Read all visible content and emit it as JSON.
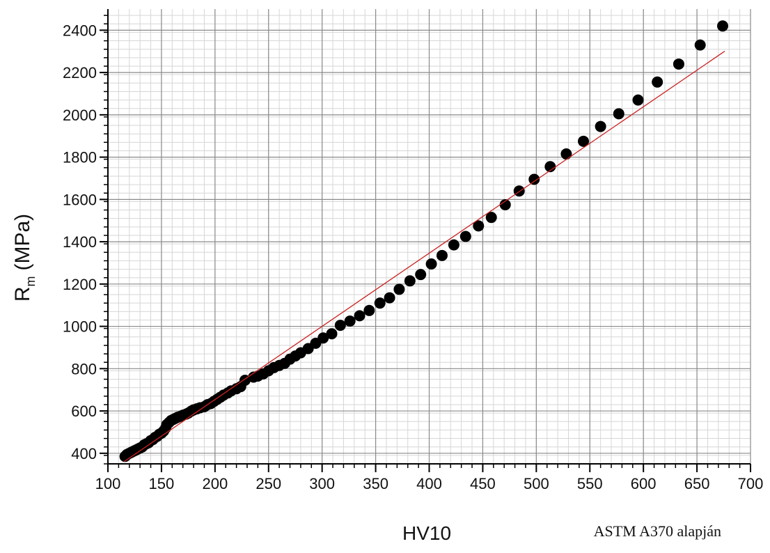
{
  "chart_data": {
    "type": "scatter",
    "xlabel": "HV10",
    "ylabel": "R",
    "ylabel_sub": "m",
    "ylabel_unit": "(MPa)",
    "note": "ASTM A370 alapján",
    "xlim": [
      100,
      700
    ],
    "xticks": [
      100,
      150,
      200,
      250,
      300,
      350,
      400,
      450,
      500,
      550,
      600,
      650,
      700
    ],
    "ylim": [
      350,
      2500
    ],
    "yticks": [
      400,
      600,
      800,
      1000,
      1200,
      1400,
      1600,
      1800,
      2000,
      2200,
      2400
    ],
    "grid": true,
    "minor_grid_x": 10,
    "minor_grid_y": 40,
    "series": [
      {
        "kind": "points",
        "color": "#000000",
        "x": [
          116,
          117,
          118,
          120,
          122,
          124,
          126,
          128,
          130,
          132,
          134,
          136,
          138,
          140,
          142,
          144,
          146,
          148,
          150,
          152,
          154,
          155,
          157,
          159,
          161,
          163,
          165,
          168,
          170,
          173,
          175,
          178,
          180,
          183,
          186,
          190,
          193,
          196,
          199,
          202,
          205,
          208,
          212,
          215,
          220,
          224,
          228,
          236,
          240,
          245,
          250,
          255,
          260,
          265,
          270,
          275,
          280,
          287,
          294,
          301,
          309,
          317,
          326,
          335,
          344,
          354,
          363,
          372,
          382,
          392,
          402,
          412,
          423,
          434,
          446,
          458,
          471,
          484,
          498,
          513,
          528,
          544,
          560,
          577,
          595,
          613,
          633,
          653,
          674
        ],
        "values": [
          385,
          390,
          395,
          400,
          405,
          410,
          415,
          420,
          425,
          430,
          440,
          445,
          450,
          460,
          465,
          475,
          480,
          490,
          495,
          505,
          520,
          535,
          545,
          555,
          560,
          565,
          570,
          575,
          580,
          585,
          590,
          600,
          605,
          610,
          615,
          620,
          630,
          635,
          645,
          655,
          665,
          675,
          685,
          695,
          705,
          715,
          745,
          760,
          765,
          775,
          790,
          805,
          815,
          825,
          845,
          860,
          875,
          895,
          920,
          945,
          965,
          1005,
          1025,
          1050,
          1075,
          1110,
          1135,
          1175,
          1215,
          1245,
          1295,
          1335,
          1385,
          1425,
          1475,
          1515,
          1575,
          1640,
          1695,
          1755,
          1815,
          1875,
          1945,
          2005,
          2070,
          2155,
          2240,
          2330,
          2420
        ]
      },
      {
        "kind": "line",
        "color": "#cc2222",
        "x": [
          115,
          676
        ],
        "values": [
          360,
          2301
        ]
      }
    ]
  }
}
